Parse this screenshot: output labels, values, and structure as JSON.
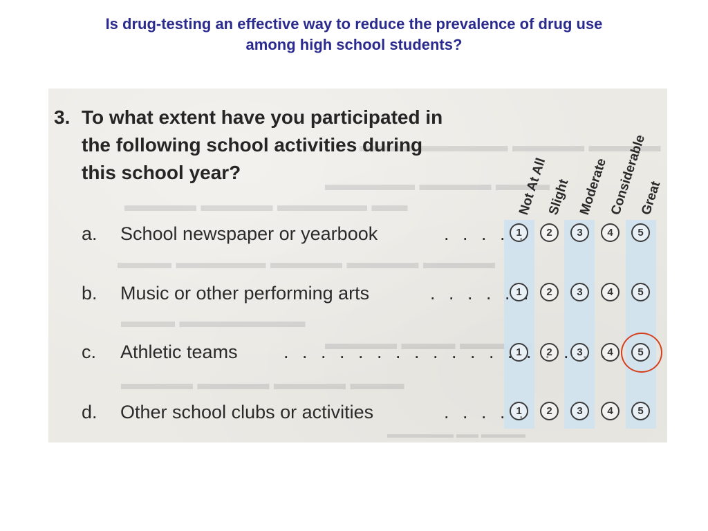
{
  "slide": {
    "title_line1": "Is drug-testing an effective way to reduce the prevalence of drug use",
    "title_line2": "among high school students?"
  },
  "question": {
    "number": "3.",
    "text_lines": [
      "To what extent have you participated in",
      "the following school activities during",
      "this school year?"
    ]
  },
  "scale": [
    "Not At All",
    "Slight",
    "Moderate",
    "Considerable",
    "Great"
  ],
  "rows": [
    {
      "letter": "a.",
      "label": "School newspaper or yearbook",
      "dots": ". . . . ."
    },
    {
      "letter": "b.",
      "label": "Music or other performing arts",
      "dots": ". . . . . ."
    },
    {
      "letter": "c.",
      "label": "Athletic teams",
      "dots": ". . . . . . . . . . . . . . . . . ."
    },
    {
      "letter": "d.",
      "label": "Other school clubs or activities",
      "dots": ". . . . ."
    }
  ],
  "bubble_numbers": [
    "1",
    "2",
    "3",
    "4",
    "5"
  ],
  "selected_answer": {
    "row": "c.",
    "value": "5"
  },
  "colors": {
    "title": "#2b2b8f",
    "band": "#cfe2f0",
    "highlight": "#d6401e"
  }
}
